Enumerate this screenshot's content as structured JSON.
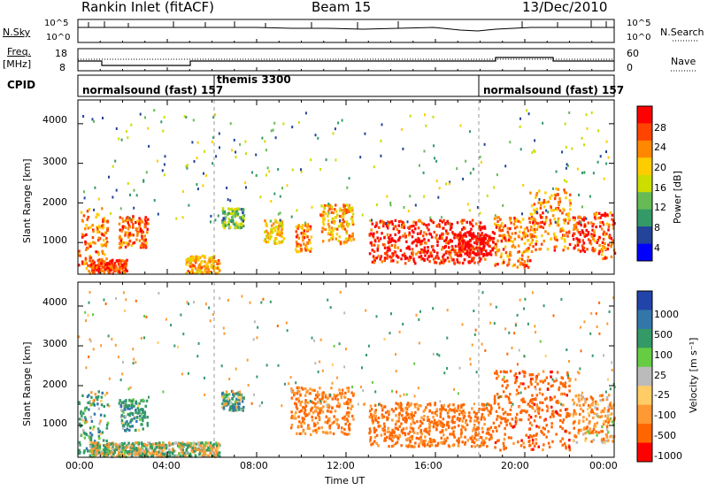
{
  "header": {
    "station": "Rankin Inlet (fitACF)",
    "beam": "Beam 15",
    "date": "13/Dec/2010"
  },
  "noise_panel": {
    "left_label": "N.Sky",
    "left_ticks": [
      "10^5",
      "10^0"
    ],
    "right_label": "N.Search",
    "right_ticks": [
      "10^5",
      "10^0"
    ]
  },
  "freq_panel": {
    "left_label_1": "Freq.",
    "left_label_2": "[MHz]",
    "left_ticks": [
      "18",
      "8"
    ],
    "right_label": "Nave",
    "right_ticks": [
      "60",
      "0"
    ]
  },
  "cpid": {
    "label": "CPID",
    "segments": [
      {
        "name": "normalsound (fast) 157",
        "start_h": 0,
        "end_h": 6
      },
      {
        "name": "themis 3300",
        "start_h": 6,
        "end_h": 18
      },
      {
        "name": "normalsound (fast) 157",
        "start_h": 18,
        "end_h": 24
      }
    ]
  },
  "power_panel": {
    "ylabel": "Slant Range [km]",
    "cbar_label": "Power [dB]",
    "cbar_ticks": [
      "28",
      "24",
      "20",
      "16",
      "12",
      "8",
      "4"
    ],
    "cbar_colors": [
      "#ff0000",
      "#ff4400",
      "#ff8800",
      "#ffcc00",
      "#ccdd00",
      "#66bb55",
      "#339966",
      "#224499",
      "#0000ff"
    ]
  },
  "velocity_panel": {
    "ylabel": "Slant Range [km]",
    "cbar_label": "Velocity [m s⁻¹]",
    "cbar_ticks": [
      "1000",
      "500",
      "100",
      "25",
      "-25",
      "-100",
      "-500",
      "-1000"
    ],
    "cbar_colors": [
      "#2244aa",
      "#3377aa",
      "#339966",
      "#66cc44",
      "#bbbbbb",
      "#ffcc66",
      "#ff9933",
      "#ff6600",
      "#ff0000"
    ]
  },
  "range_axis": {
    "ticks": [
      "4000",
      "3000",
      "2000",
      "1000"
    ]
  },
  "time_axis": {
    "ticks": [
      "00:00",
      "04:00",
      "08:00",
      "12:00",
      "16:00",
      "20:00",
      "00:00"
    ],
    "label": "Time UT"
  },
  "chart_data": [
    {
      "type": "heatmap",
      "title": "Power",
      "xlabel": "Time UT",
      "ylabel": "Slant Range [km]",
      "xlim_hours": [
        0,
        24
      ],
      "ylim_km": [
        200,
        4600
      ],
      "colorbar": {
        "label": "Power [dB]",
        "range": [
          0,
          30
        ],
        "ticks": [
          4,
          8,
          12,
          16,
          20,
          24,
          28
        ]
      },
      "echo_regions": [
        {
          "t0": 0.0,
          "t1": 1.3,
          "r0": 300,
          "r1": 1900,
          "level": 22
        },
        {
          "t0": 1.8,
          "t1": 3.1,
          "r0": 900,
          "r1": 1700,
          "level": 24
        },
        {
          "t0": 0.5,
          "t1": 2.2,
          "r0": 250,
          "r1": 600,
          "level": 26
        },
        {
          "t0": 4.8,
          "t1": 6.3,
          "r0": 250,
          "r1": 700,
          "level": 20
        },
        {
          "t0": 6.4,
          "t1": 7.4,
          "r0": 1400,
          "r1": 1900,
          "level": 12
        },
        {
          "t0": 8.3,
          "t1": 9.2,
          "r0": 1000,
          "r1": 1600,
          "level": 18
        },
        {
          "t0": 9.7,
          "t1": 10.4,
          "r0": 800,
          "r1": 1500,
          "level": 22
        },
        {
          "t0": 10.8,
          "t1": 12.3,
          "r0": 1000,
          "r1": 2000,
          "level": 20
        },
        {
          "t0": 13.0,
          "t1": 18.2,
          "r0": 500,
          "r1": 1600,
          "level": 28
        },
        {
          "t0": 17.0,
          "t1": 18.6,
          "r0": 700,
          "r1": 1300,
          "level": 30
        },
        {
          "t0": 18.6,
          "t1": 20.2,
          "r0": 400,
          "r1": 1700,
          "level": 22
        },
        {
          "t0": 20.2,
          "t1": 22.0,
          "r0": 800,
          "r1": 2400,
          "level": 22
        },
        {
          "t0": 22.1,
          "t1": 23.0,
          "r0": 800,
          "r1": 1700,
          "level": 28
        },
        {
          "t0": 23.0,
          "t1": 24.0,
          "r0": 600,
          "r1": 1800,
          "level": 24
        }
      ]
    },
    {
      "type": "heatmap",
      "title": "Velocity",
      "xlabel": "Time UT",
      "ylabel": "Slant Range [km]",
      "xlim_hours": [
        0,
        24
      ],
      "ylim_km": [
        200,
        4600
      ],
      "colorbar": {
        "label": "Velocity [m s⁻¹]",
        "range": [
          -1000,
          1000
        ],
        "ticks": [
          -1000,
          -500,
          -100,
          -25,
          25,
          100,
          500,
          1000
        ]
      },
      "echo_regions": [
        {
          "t0": 0.0,
          "t1": 1.3,
          "r0": 300,
          "r1": 1900,
          "level": 150
        },
        {
          "t0": 1.8,
          "t1": 3.1,
          "r0": 900,
          "r1": 1700,
          "level": 200
        },
        {
          "t0": 0.5,
          "t1": 6.3,
          "r0": 250,
          "r1": 600,
          "level": 0
        },
        {
          "t0": 6.4,
          "t1": 7.4,
          "r0": 1400,
          "r1": 1900,
          "level": 150
        },
        {
          "t0": 9.5,
          "t1": 12.3,
          "r0": 800,
          "r1": 2000,
          "level": -300
        },
        {
          "t0": 13.0,
          "t1": 18.6,
          "r0": 500,
          "r1": 1600,
          "level": -400
        },
        {
          "t0": 18.6,
          "t1": 22.0,
          "r0": 400,
          "r1": 2400,
          "level": -500
        },
        {
          "t0": 22.1,
          "t1": 24.0,
          "r0": 600,
          "r1": 1800,
          "level": -200
        }
      ]
    }
  ]
}
